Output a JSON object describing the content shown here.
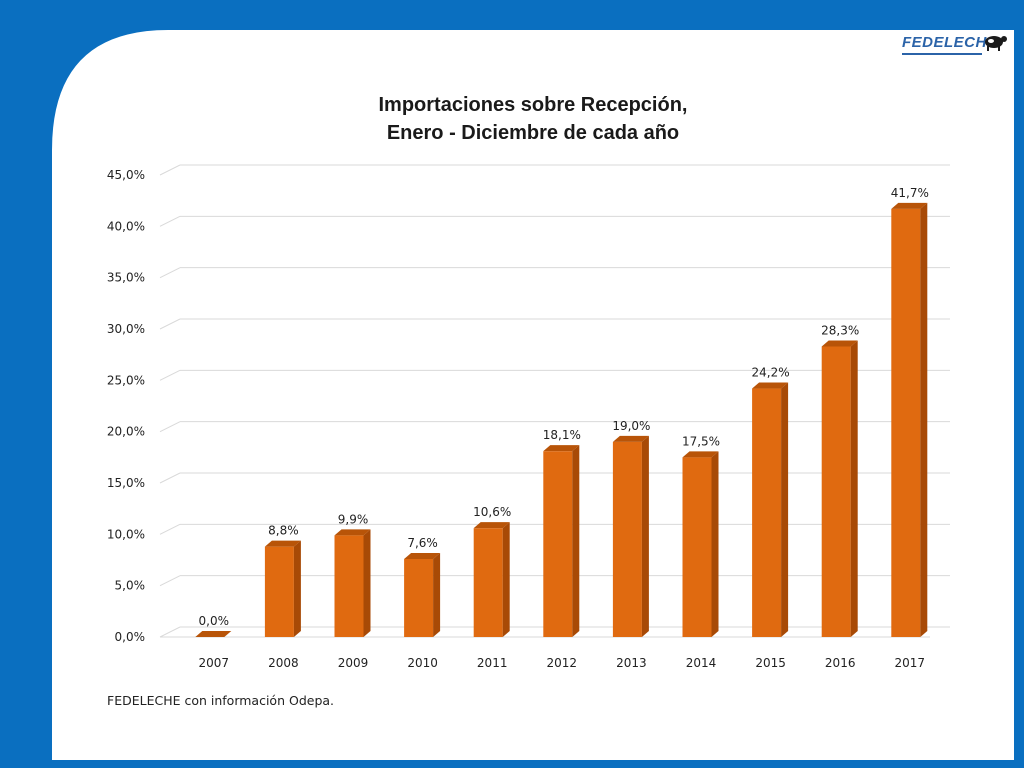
{
  "logo": {
    "text": "FEDELECHE"
  },
  "chart_data": {
    "type": "bar",
    "title_lines": [
      "Importaciones sobre Recepción,",
      "Enero - Diciembre de cada año"
    ],
    "xlabel": "",
    "ylabel": "",
    "categories": [
      "2007",
      "2008",
      "2009",
      "2010",
      "2011",
      "2012",
      "2013",
      "2014",
      "2015",
      "2016",
      "2017"
    ],
    "values": [
      0.0,
      8.8,
      9.9,
      7.6,
      10.6,
      18.1,
      19.0,
      17.5,
      24.2,
      28.3,
      41.7
    ],
    "data_labels": [
      "0,0%",
      "8,8%",
      "9,9%",
      "7,6%",
      "10,6%",
      "18,1%",
      "19,0%",
      "17,5%",
      "24,2%",
      "28,3%",
      "41,7%"
    ],
    "yticks": [
      0,
      5,
      10,
      15,
      20,
      25,
      30,
      35,
      40,
      45
    ],
    "ytick_labels": [
      "0,0%",
      "5,0%",
      "10,0%",
      "15,0%",
      "20,0%",
      "25,0%",
      "30,0%",
      "35,0%",
      "40,0%",
      "45,0%"
    ],
    "ylim": [
      0,
      45
    ],
    "grid": true,
    "legend": "none",
    "bar_color": "#e06a10",
    "bar_side_color": "#a84a06",
    "bar_top_color": "#b85408"
  },
  "footer": {
    "source": "FEDELECHE con información Odepa."
  },
  "colors": {
    "frame_blue": "#0a6fc0",
    "gridline": "#d9d9d9"
  }
}
